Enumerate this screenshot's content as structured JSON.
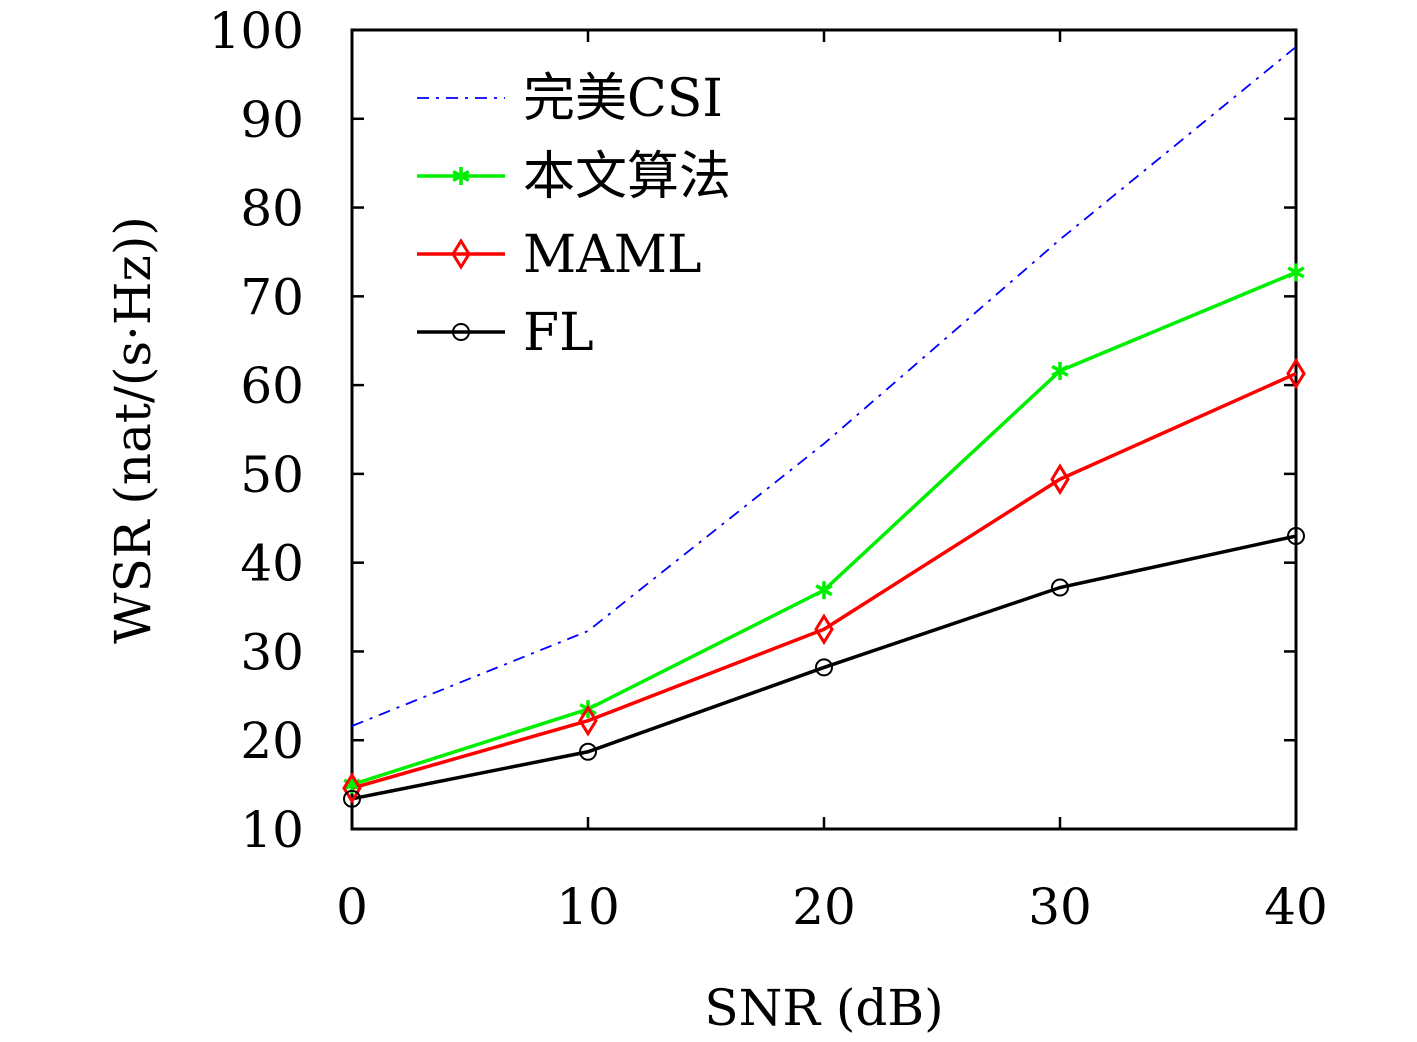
{
  "chart_data": {
    "type": "line",
    "title": "",
    "xlabel": "SNR (dB)",
    "ylabel": "WSR (nat/(s·Hz))",
    "xlim": [
      0,
      40
    ],
    "ylim": [
      10,
      100
    ],
    "x": [
      0,
      10,
      20,
      30,
      40
    ],
    "xticks": [
      0,
      10,
      20,
      30,
      40
    ],
    "yticks": [
      10,
      20,
      30,
      40,
      50,
      60,
      70,
      80,
      90,
      100
    ],
    "grid": false,
    "legend_position": "top-left",
    "series": [
      {
        "name": "完美CSI",
        "values": [
          21.6,
          32.3,
          53.4,
          76.4,
          98.1
        ],
        "color": "#0000ff",
        "line_style": "dash-dot",
        "marker": "none"
      },
      {
        "name": "本文算法",
        "values": [
          15.0,
          23.5,
          36.9,
          61.6,
          72.7
        ],
        "color": "#00ee00",
        "line_style": "solid",
        "marker": "asterisk"
      },
      {
        "name": "MAML",
        "values": [
          14.6,
          22.2,
          32.5,
          49.4,
          61.3
        ],
        "color": "#ff0000",
        "line_style": "solid",
        "marker": "diamond"
      },
      {
        "name": "FL",
        "values": [
          13.4,
          18.7,
          28.2,
          37.2,
          43.0
        ],
        "color": "#000000",
        "line_style": "solid",
        "marker": "circle"
      }
    ]
  }
}
